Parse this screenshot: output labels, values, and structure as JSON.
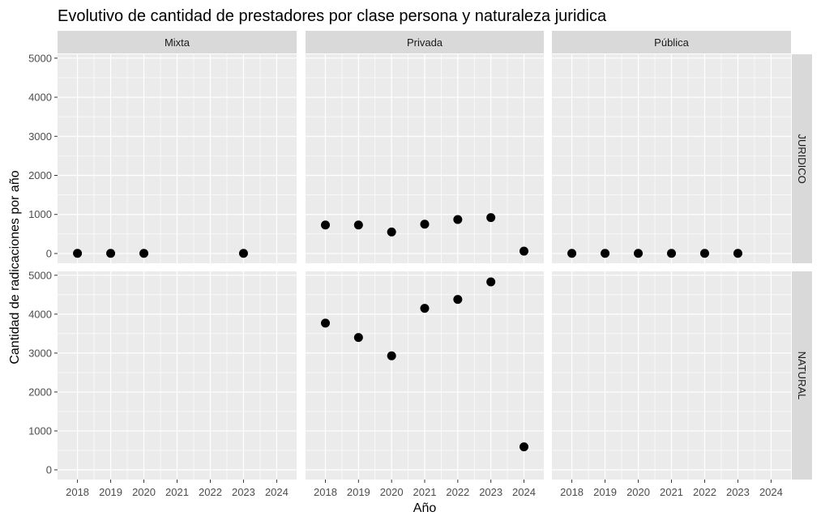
{
  "chart_data": {
    "type": "scatter",
    "title": "Evolutivo de cantidad de prestadores por clase persona y naturaleza juridica",
    "xlabel": "Año",
    "ylabel": "Cantidad de radicaciones por año",
    "x_ticks": [
      "2018",
      "2019",
      "2020",
      "2021",
      "2022",
      "2023",
      "2024"
    ],
    "y_ticks": [
      "0",
      "1000",
      "2000",
      "3000",
      "4000",
      "5000"
    ],
    "xlim": [
      2017.4,
      2024.6
    ],
    "ylim": [
      -250,
      5100
    ],
    "grid": true,
    "legend": "none",
    "colors": {
      "panel_bg": "#ebebeb",
      "grid": "#ffffff",
      "strip_bg": "#d9d9d9",
      "point": "#000000"
    },
    "facet_columns": [
      "Mixta",
      "Privada",
      "Pública"
    ],
    "facet_rows": [
      "JURIDICO",
      "NATURAL"
    ],
    "panels": [
      {
        "row": "JURIDICO",
        "column": "Mixta",
        "points": [
          {
            "x": 2018,
            "y": 5
          },
          {
            "x": 2019,
            "y": 5
          },
          {
            "x": 2020,
            "y": 5
          },
          {
            "x": 2023,
            "y": 5
          }
        ]
      },
      {
        "row": "JURIDICO",
        "column": "Privada",
        "points": [
          {
            "x": 2018,
            "y": 730
          },
          {
            "x": 2019,
            "y": 730
          },
          {
            "x": 2020,
            "y": 550
          },
          {
            "x": 2021,
            "y": 750
          },
          {
            "x": 2022,
            "y": 870
          },
          {
            "x": 2023,
            "y": 920
          },
          {
            "x": 2024,
            "y": 60
          }
        ]
      },
      {
        "row": "JURIDICO",
        "column": "Pública",
        "points": [
          {
            "x": 2018,
            "y": 5
          },
          {
            "x": 2019,
            "y": 5
          },
          {
            "x": 2020,
            "y": 5
          },
          {
            "x": 2021,
            "y": 5
          },
          {
            "x": 2022,
            "y": 5
          },
          {
            "x": 2023,
            "y": 5
          }
        ]
      },
      {
        "row": "NATURAL",
        "column": "Mixta",
        "points": []
      },
      {
        "row": "NATURAL",
        "column": "Privada",
        "points": [
          {
            "x": 2018,
            "y": 3770
          },
          {
            "x": 2019,
            "y": 3400
          },
          {
            "x": 2020,
            "y": 2930
          },
          {
            "x": 2021,
            "y": 4150
          },
          {
            "x": 2022,
            "y": 4380
          },
          {
            "x": 2023,
            "y": 4830
          },
          {
            "x": 2024,
            "y": 590
          }
        ]
      },
      {
        "row": "NATURAL",
        "column": "Pública",
        "points": []
      }
    ]
  }
}
